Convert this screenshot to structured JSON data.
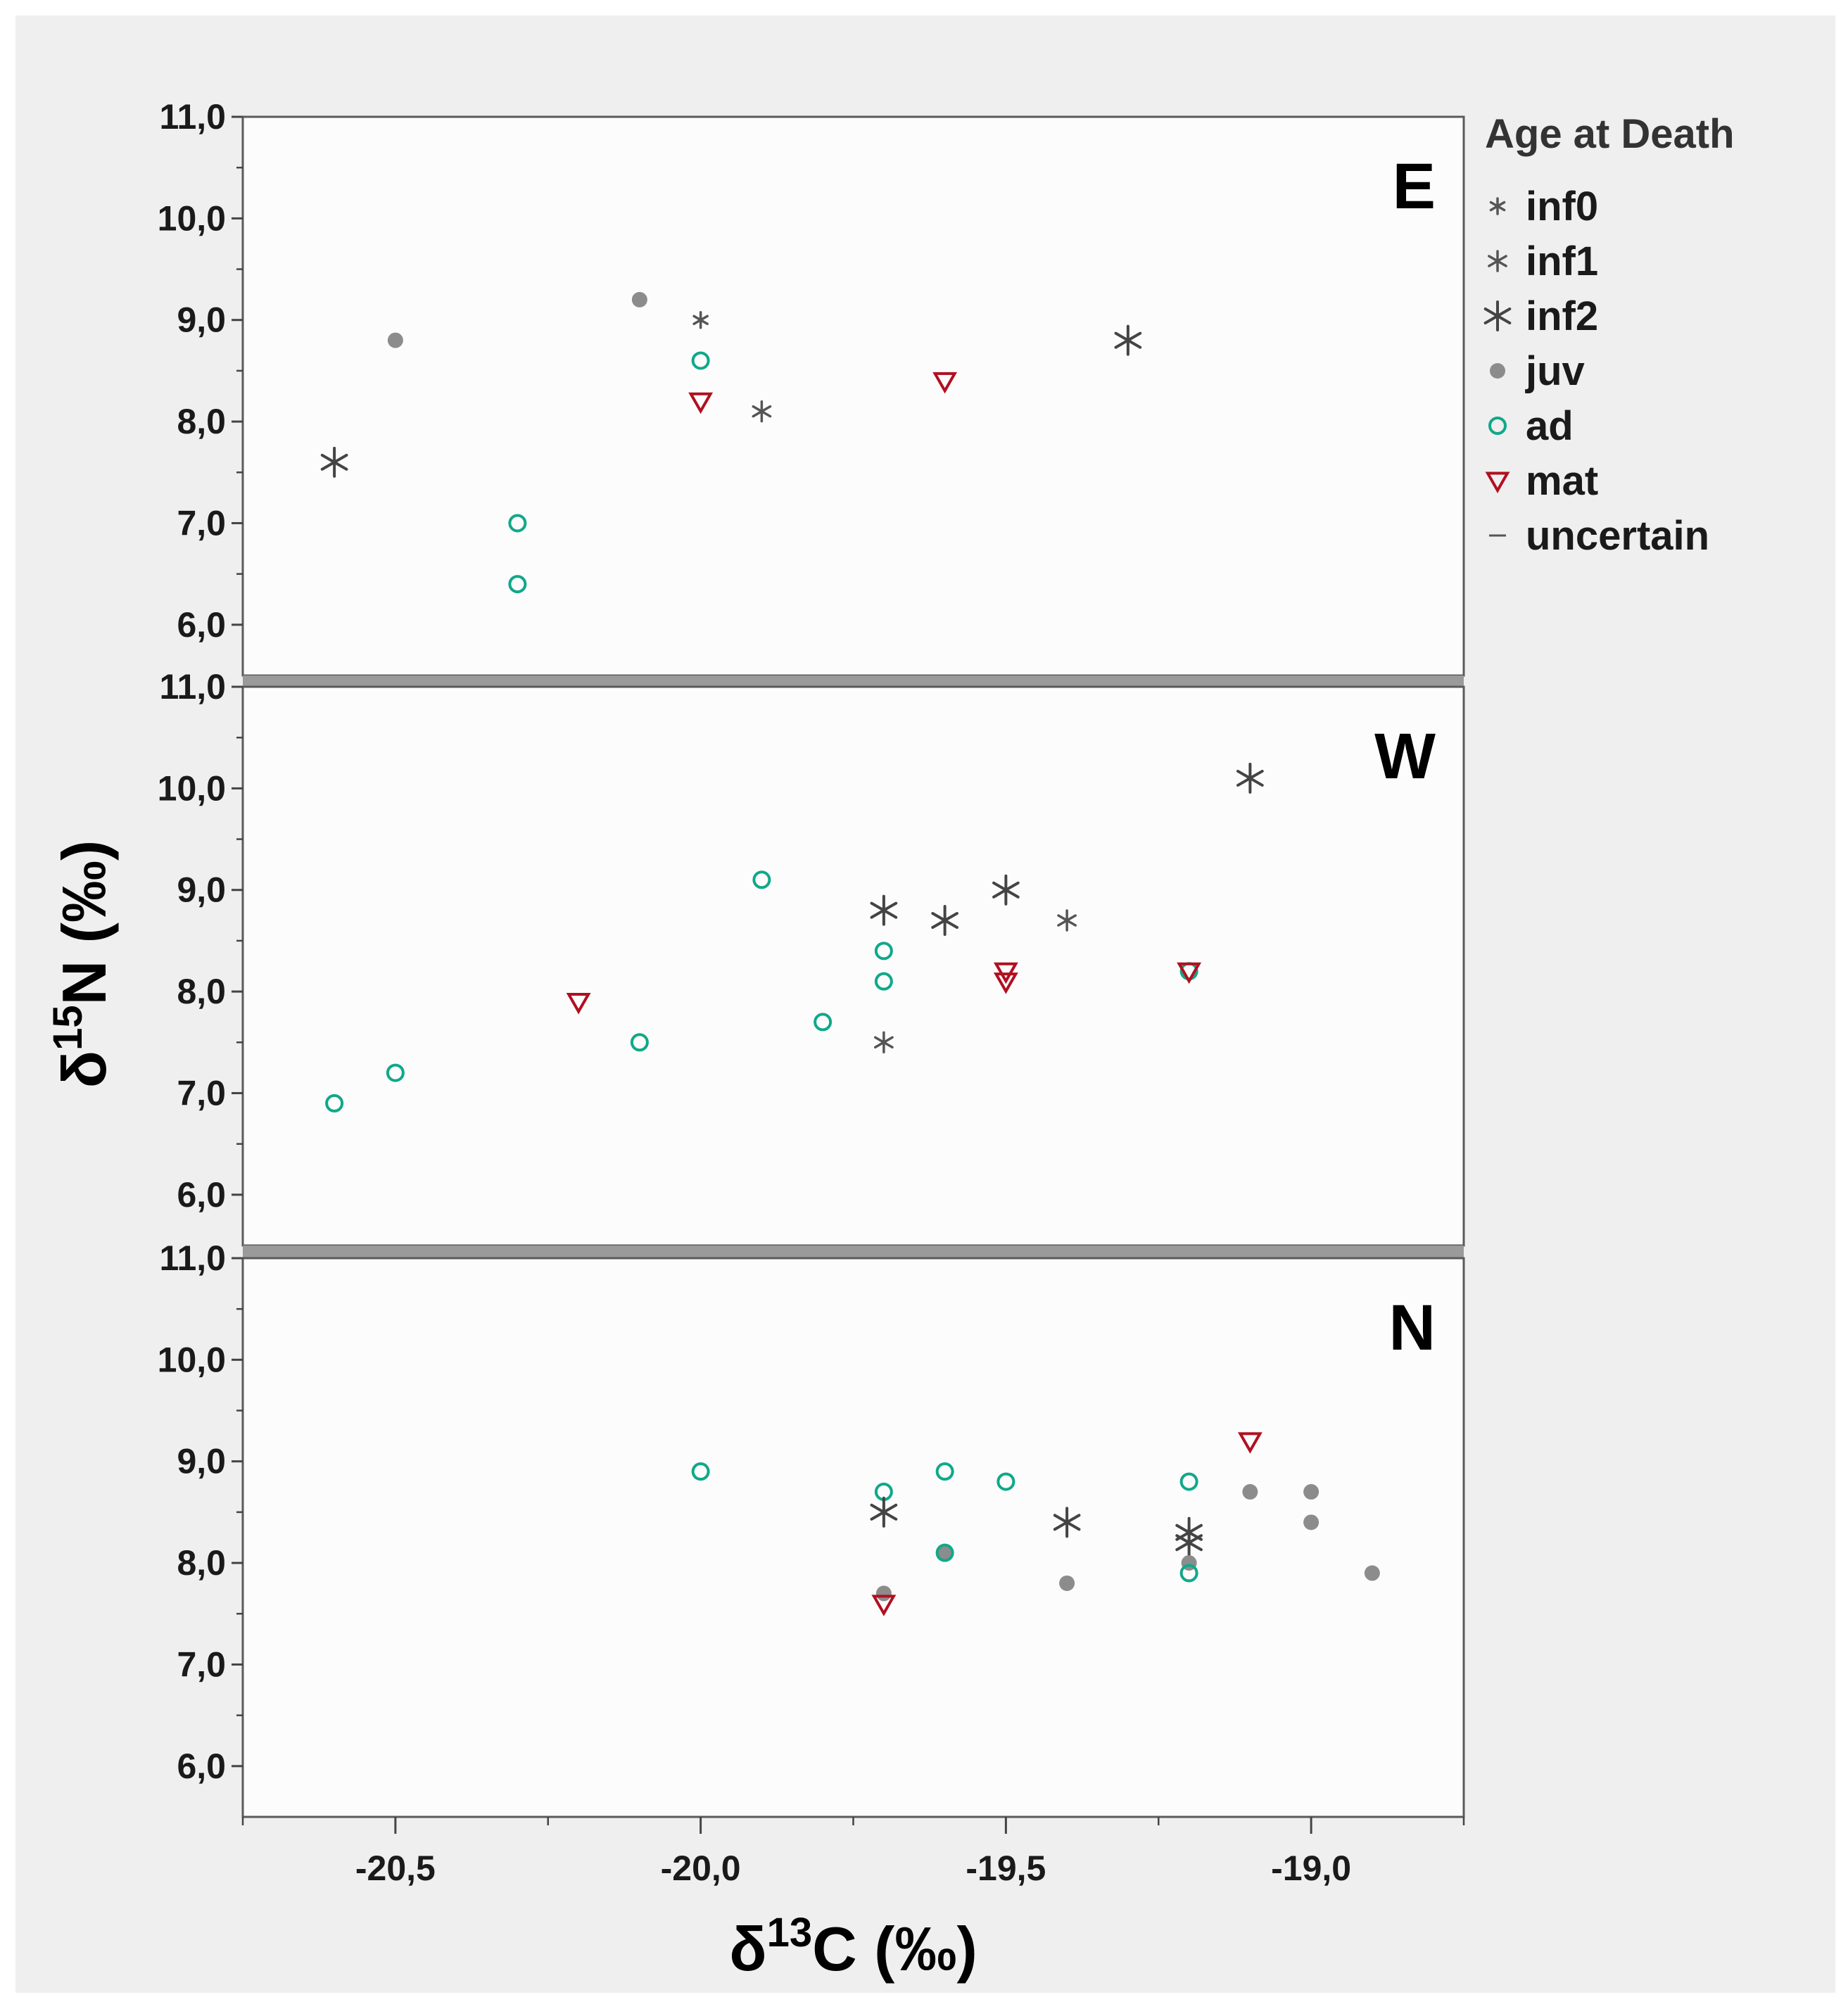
{
  "chart_data": {
    "type": "scatter",
    "xlabel_prefix": "δ",
    "xlabel_sup": "13",
    "xlabel_suffix": "C (‰)",
    "ylabel_prefix": "δ",
    "ylabel_sup": "15",
    "ylabel_suffix": "N (‰)",
    "xlim": [
      -20.75,
      -18.75
    ],
    "ylim": [
      5.5,
      11.0
    ],
    "x_ticks": [
      -20.5,
      -20.0,
      -19.5,
      -19.0
    ],
    "x_tick_labels": [
      "-20,5",
      "-20,0",
      "-19,5",
      "-19,0"
    ],
    "y_ticks": [
      6.0,
      7.0,
      8.0,
      9.0,
      10.0,
      11.0
    ],
    "y_tick_labels": [
      "6,0",
      "7,0",
      "8,0",
      "9,0",
      "10,0",
      "11,0"
    ],
    "legend": {
      "title": "Age at Death",
      "entries": [
        {
          "key": "inf0",
          "label": "inf0"
        },
        {
          "key": "inf1",
          "label": "inf1"
        },
        {
          "key": "inf2",
          "label": "inf2"
        },
        {
          "key": "juv",
          "label": "juv"
        },
        {
          "key": "ad",
          "label": "ad"
        },
        {
          "key": "mat",
          "label": "mat"
        },
        {
          "key": "uncertain",
          "label": "uncertain"
        }
      ]
    },
    "colors": {
      "inf0": "#555555",
      "inf1": "#555555",
      "inf2": "#444444",
      "juv": "#8c8c8c",
      "ad": "#10a889",
      "mat": "#b01020",
      "uncertain": "#555555"
    },
    "panels": [
      {
        "name": "E",
        "points": [
          {
            "x": -20.6,
            "y": 7.6,
            "g": "inf2"
          },
          {
            "x": -20.5,
            "y": 8.8,
            "g": "juv"
          },
          {
            "x": -20.3,
            "y": 7.0,
            "g": "ad"
          },
          {
            "x": -20.3,
            "y": 6.4,
            "g": "ad"
          },
          {
            "x": -20.1,
            "y": 9.2,
            "g": "juv"
          },
          {
            "x": -20.0,
            "y": 9.0,
            "g": "inf0"
          },
          {
            "x": -20.0,
            "y": 8.6,
            "g": "ad"
          },
          {
            "x": -20.0,
            "y": 8.2,
            "g": "mat"
          },
          {
            "x": -19.9,
            "y": 8.1,
            "g": "inf1"
          },
          {
            "x": -19.6,
            "y": 8.4,
            "g": "mat"
          },
          {
            "x": -19.3,
            "y": 8.8,
            "g": "inf2"
          }
        ]
      },
      {
        "name": "W",
        "points": [
          {
            "x": -20.6,
            "y": 6.9,
            "g": "ad"
          },
          {
            "x": -20.5,
            "y": 7.2,
            "g": "ad"
          },
          {
            "x": -20.2,
            "y": 7.9,
            "g": "mat"
          },
          {
            "x": -20.1,
            "y": 7.5,
            "g": "ad"
          },
          {
            "x": -19.9,
            "y": 9.1,
            "g": "ad"
          },
          {
            "x": -19.8,
            "y": 7.7,
            "g": "ad"
          },
          {
            "x": -19.7,
            "y": 8.8,
            "g": "inf2"
          },
          {
            "x": -19.7,
            "y": 8.4,
            "g": "ad"
          },
          {
            "x": -19.7,
            "y": 8.1,
            "g": "ad"
          },
          {
            "x": -19.7,
            "y": 7.5,
            "g": "inf1"
          },
          {
            "x": -19.6,
            "y": 8.7,
            "g": "inf2"
          },
          {
            "x": -19.5,
            "y": 9.0,
            "g": "inf2"
          },
          {
            "x": -19.5,
            "y": 8.2,
            "g": "mat"
          },
          {
            "x": -19.5,
            "y": 8.1,
            "g": "mat"
          },
          {
            "x": -19.4,
            "y": 8.7,
            "g": "inf1"
          },
          {
            "x": -19.2,
            "y": 8.2,
            "g": "ad"
          },
          {
            "x": -19.2,
            "y": 8.2,
            "g": "mat"
          },
          {
            "x": -19.1,
            "y": 10.1,
            "g": "inf2"
          }
        ]
      },
      {
        "name": "N",
        "points": [
          {
            "x": -20.0,
            "y": 8.9,
            "g": "ad"
          },
          {
            "x": -19.7,
            "y": 8.7,
            "g": "ad"
          },
          {
            "x": -19.7,
            "y": 8.5,
            "g": "inf2"
          },
          {
            "x": -19.7,
            "y": 7.7,
            "g": "juv"
          },
          {
            "x": -19.7,
            "y": 7.6,
            "g": "mat"
          },
          {
            "x": -19.6,
            "y": 8.9,
            "g": "ad"
          },
          {
            "x": -19.6,
            "y": 8.1,
            "g": "juv"
          },
          {
            "x": -19.6,
            "y": 8.1,
            "g": "ad"
          },
          {
            "x": -19.5,
            "y": 8.8,
            "g": "ad"
          },
          {
            "x": -19.4,
            "y": 8.4,
            "g": "inf2"
          },
          {
            "x": -19.4,
            "y": 7.8,
            "g": "juv"
          },
          {
            "x": -19.2,
            "y": 8.8,
            "g": "ad"
          },
          {
            "x": -19.2,
            "y": 8.3,
            "g": "inf2"
          },
          {
            "x": -19.2,
            "y": 8.2,
            "g": "inf2"
          },
          {
            "x": -19.2,
            "y": 8.0,
            "g": "juv"
          },
          {
            "x": -19.2,
            "y": 7.9,
            "g": "ad"
          },
          {
            "x": -19.1,
            "y": 9.2,
            "g": "mat"
          },
          {
            "x": -19.1,
            "y": 8.7,
            "g": "juv"
          },
          {
            "x": -19.0,
            "y": 8.7,
            "g": "juv"
          },
          {
            "x": -19.0,
            "y": 8.4,
            "g": "juv"
          },
          {
            "x": -18.9,
            "y": 7.9,
            "g": "juv"
          }
        ]
      }
    ]
  }
}
